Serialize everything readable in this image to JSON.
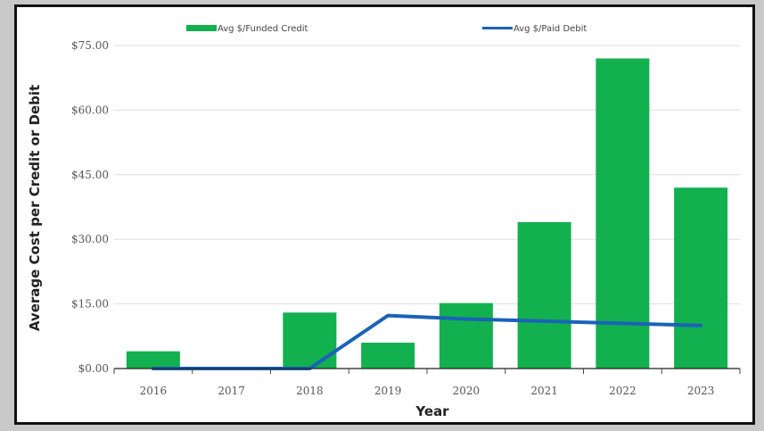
{
  "chart_data": {
    "type": "bar",
    "xlabel": "Year",
    "ylabel": "Average Cost per Credit or Debit",
    "categories": [
      "2016",
      "2017",
      "2018",
      "2019",
      "2020",
      "2021",
      "2022",
      "2023"
    ],
    "ylim": [
      0,
      75
    ],
    "yticks": [
      "$0.00",
      "$15.00",
      "$30.00",
      "$45.00",
      "$60.00",
      "$75.00"
    ],
    "ytick_values": [
      0,
      15,
      30,
      45,
      60,
      75
    ],
    "grid": true,
    "legend_position": "top",
    "series": [
      {
        "name": "Avg $/Funded Credit",
        "kind": "bar",
        "color": "#12b04e",
        "values": [
          4.0,
          0.0,
          13.0,
          6.0,
          15.2,
          34.0,
          72.0,
          42.0
        ]
      },
      {
        "name": "Avg $/Paid Debit",
        "kind": "line",
        "color": "#1a63b8",
        "values": [
          0.0,
          0.0,
          0.0,
          12.3,
          11.5,
          11.0,
          10.5,
          10.0
        ]
      }
    ]
  }
}
